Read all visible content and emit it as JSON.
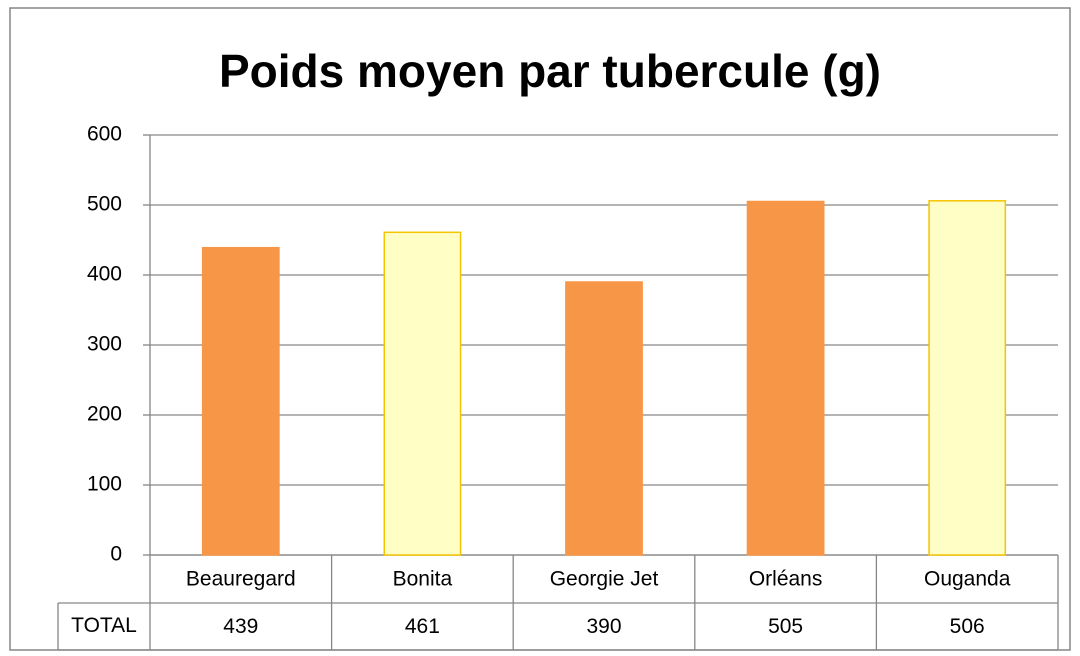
{
  "chart_data": {
    "type": "bar",
    "title": "Poids moyen par tubercule (g)",
    "categories": [
      "Beauregard",
      "Bonita",
      "Georgie Jet",
      "Orléans",
      "Ouganda"
    ],
    "row_label": "TOTAL",
    "values": [
      439,
      461,
      390,
      505,
      506
    ],
    "colors": [
      "#f79646",
      "#ffffc5",
      "#f79646",
      "#f79646",
      "#ffffc5"
    ],
    "edgecolors": [
      "#f79646",
      "#f5c400",
      "#f79646",
      "#f79646",
      "#f5c400"
    ],
    "ylim": [
      0,
      600
    ],
    "yticks": [
      0,
      100,
      200,
      300,
      400,
      500,
      600
    ],
    "grid": true
  }
}
